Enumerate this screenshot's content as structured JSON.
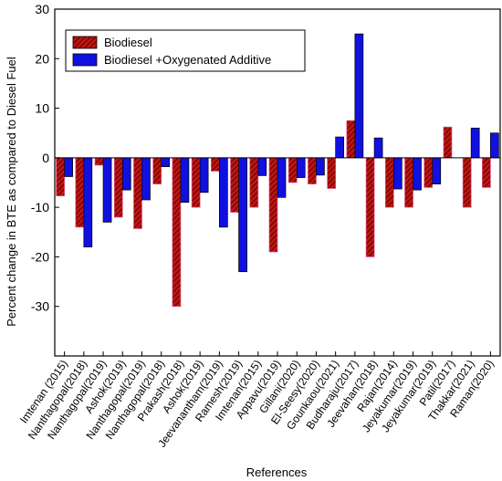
{
  "chart_data": {
    "type": "bar",
    "xlabel": "References",
    "ylabel": "Percent change in BTE as compared to Diesel Fuel",
    "ylim": [
      -40,
      30
    ],
    "yticks": [
      30,
      20,
      10,
      0,
      -10,
      -20,
      -30
    ],
    "legend_position": "top-left",
    "categories": [
      "Imtenan (2015)",
      "Nanthagopal(2018)",
      "Nanthagopal(2019)",
      "Ashok(2019)",
      "Nanthagopal(2019)",
      "Nanthagopal(2018)",
      "Prakash(2018)",
      "Ashok(2019)",
      "Jeevanantham(2019)",
      "Ramesh(2019)",
      "Imtenan(2015)",
      "Appavu(2019)",
      "Gillani(2020)",
      "El-Seesy(2020)",
      "Gounkaou(2021)",
      "Budharaju(2017)",
      "Jeevahan(2018)",
      "Rajan(2014)",
      "Jeyakumar(2019)",
      "Jeyakumar(2019)",
      "Patil(2017)",
      "Thakkar(2021)",
      "Raman(2020)"
    ],
    "series": [
      {
        "name": "Biodiesel",
        "color": "#c0150f",
        "values": [
          -7.7,
          -14.0,
          -1.5,
          -12.0,
          -14.3,
          -5.3,
          -30.0,
          -10.0,
          -2.7,
          -11.0,
          -10.0,
          -19.0,
          -5.0,
          -5.3,
          -6.2,
          7.5,
          -20.0,
          -10.0,
          -10.0,
          -6.0,
          6.2,
          -10.0,
          -6.0
        ]
      },
      {
        "name": "Biodiesel +Oxygenated Additive",
        "color": "#1010e0",
        "values": [
          -3.8,
          -18.0,
          -13.0,
          -6.5,
          -8.5,
          -1.8,
          -9.0,
          -7.0,
          -14.0,
          -23.0,
          -3.6,
          -8.0,
          -4.0,
          -3.5,
          4.2,
          25.0,
          4.0,
          -6.3,
          -6.5,
          -5.3,
          null,
          6.0,
          5.0
        ]
      }
    ]
  }
}
